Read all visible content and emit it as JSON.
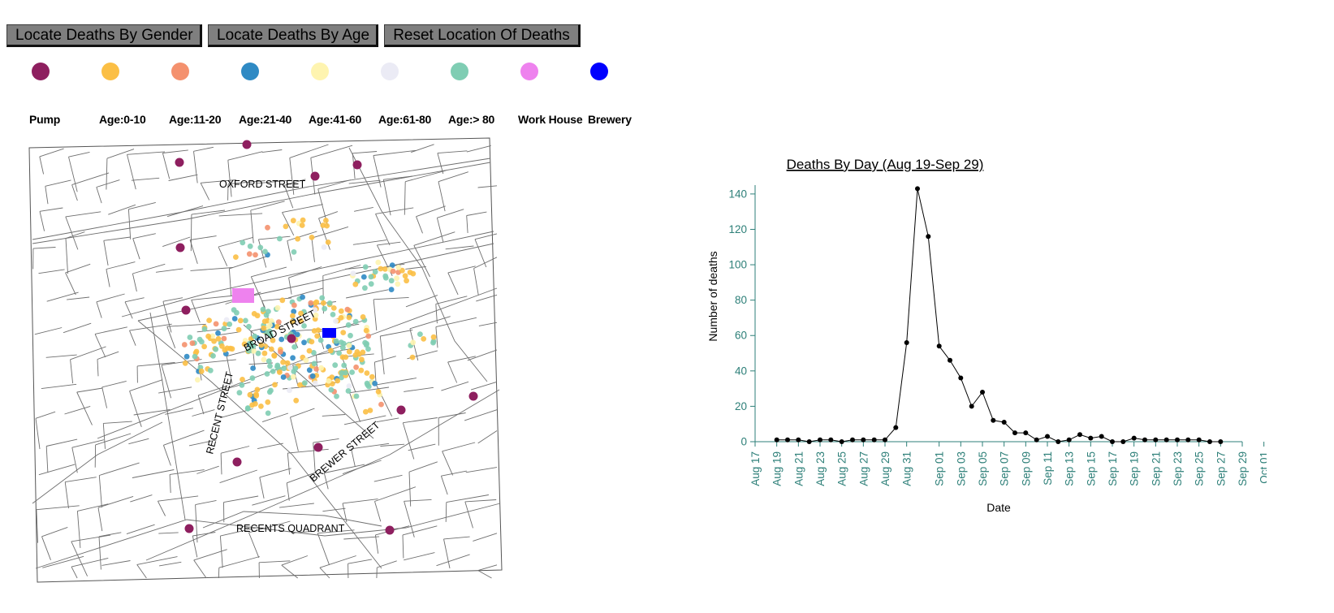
{
  "toolbar": {
    "gender_label": "Locate Deaths By Gender",
    "age_label": "Locate Deaths By Age",
    "reset_label": "Reset Location Of Deaths"
  },
  "legend": [
    {
      "label": "Pump",
      "color": "#8e1f5f"
    },
    {
      "label": "Age:0-10",
      "color": "#fbbf45"
    },
    {
      "label": "Age:11-20",
      "color": "#f4916e"
    },
    {
      "label": "Age:21-40",
      "color": "#2f8ac4"
    },
    {
      "label": "Age:41-60",
      "color": "#fef4b0"
    },
    {
      "label": "Age:61-80",
      "color": "#ebebf5"
    },
    {
      "label": "Age:> 80",
      "color": "#7fcdb3"
    },
    {
      "label": "Work House",
      "color": "#ee82ee"
    },
    {
      "label": "Brewery",
      "color": "#0000ff"
    }
  ],
  "map": {
    "street_labels": {
      "oxford": "OXFORD STREET",
      "broad": "BROAD STREET",
      "regent": "RECENT STREET",
      "brewer": "BREWER STREET",
      "quadrant": "RECENTS QUADRANT"
    }
  },
  "chart_data": {
    "type": "line",
    "title": "Deaths By Day (Aug 19-Sep 29)",
    "xlabel": "Date",
    "ylabel": "Number of deaths",
    "ylim": [
      0,
      145
    ],
    "yticks": [
      0,
      20,
      40,
      60,
      80,
      100,
      120,
      140
    ],
    "xlim": [
      "1854-08-17",
      "1854-10-01"
    ],
    "xtick_labels": [
      "Aug 17",
      "Aug 19",
      "Aug 21",
      "Aug 23",
      "Aug 25",
      "Aug 27",
      "Aug 29",
      "Aug 31",
      "Sep 01",
      "Sep 03",
      "Sep 05",
      "Sep 07",
      "Sep 09",
      "Sep 11",
      "Sep 13",
      "Sep 15",
      "Sep 17",
      "Sep 19",
      "Sep 21",
      "Sep 23",
      "Sep 25",
      "Sep 27",
      "Sep 29",
      "Oct 01"
    ],
    "grid": false,
    "series": [
      {
        "color": "#000000",
        "x": [
          "1854-08-19",
          "1854-08-20",
          "1854-08-21",
          "1854-08-22",
          "1854-08-23",
          "1854-08-24",
          "1854-08-25",
          "1854-08-26",
          "1854-08-27",
          "1854-08-28",
          "1854-08-29",
          "1854-08-30",
          "1854-08-31",
          "1854-09-01",
          "1854-09-02",
          "1854-09-03",
          "1854-09-04",
          "1854-09-05",
          "1854-09-06",
          "1854-09-07",
          "1854-09-08",
          "1854-09-09",
          "1854-09-10",
          "1854-09-11",
          "1854-09-12",
          "1854-09-13",
          "1854-09-14",
          "1854-09-15",
          "1854-09-16",
          "1854-09-17",
          "1854-09-18",
          "1854-09-19",
          "1854-09-20",
          "1854-09-21",
          "1854-09-22",
          "1854-09-23",
          "1854-09-24",
          "1854-09-25",
          "1854-09-26",
          "1854-09-27",
          "1854-09-28",
          "1854-09-29"
        ],
        "y": [
          1,
          1,
          1,
          0,
          1,
          1,
          0,
          1,
          1,
          1,
          1,
          8,
          56,
          143,
          116,
          54,
          46,
          36,
          20,
          28,
          12,
          11,
          5,
          5,
          1,
          3,
          0,
          1,
          4,
          2,
          3,
          0,
          0,
          2,
          1,
          1,
          1,
          1,
          1,
          1,
          0,
          0
        ]
      }
    ]
  }
}
